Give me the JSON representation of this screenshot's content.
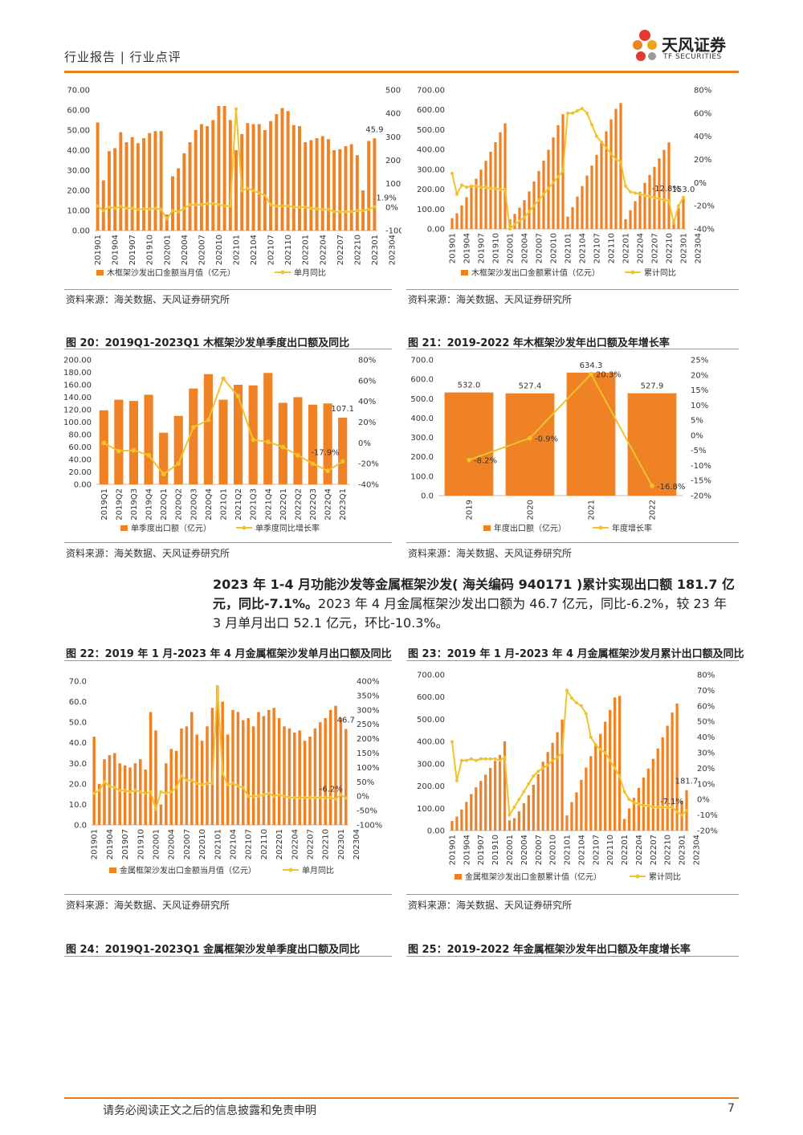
{
  "header": {
    "left": "行业报告 | 行业点评",
    "logo_cn": "天风证券",
    "logo_en": "TF SECURITIES"
  },
  "colors": {
    "bar": "#F08226",
    "line": "#F2C12E",
    "accent": "#E8801E"
  },
  "source_note": "资料来源：海关数据、天风证券研究所",
  "paragraph": {
    "bold": "2023 年 1-4 月功能沙发等金属框架沙发( 海关编码 940171 )累计实现出口额 181.7 亿元，同比-7.1%。",
    "normal": "2023 年 4 月金属框架沙发出口额为 46.7 亿元，同比-6.2%，较 23 年 3 月单月出口 52.1 亿元，环比-10.3%。"
  },
  "figures": {
    "fig20": "图 20：2019Q1-2023Q1 木框架沙发单季度出口额及同比",
    "fig21": "图 21：2019-2022 年木框架沙发年出口额及年增长率",
    "fig22": "图 22：2019 年 1 月-2023 年 4 月金属框架沙发单月出口额及同比",
    "fig23": "图 23：2019 年 1 月-2023 年 4 月金属框架沙发月累计出口额及同比",
    "fig24": "图 24：2019Q1-2023Q1 金属框架沙发单季度出口额及同比",
    "fig25": "图 25：2019-2022 年金属框架沙发年出口额及年度增长率"
  },
  "footer": {
    "disclaimer": "请务必阅读正文之后的信息披露和免责申明",
    "page": "7"
  },
  "chart_data": [
    {
      "type": "bar",
      "id": "wood-monthly",
      "xlabel_ticks": [
        "201901",
        "201904",
        "201907",
        "201910",
        "202001",
        "202004",
        "202007",
        "202010",
        "202101",
        "202104",
        "202107",
        "202110",
        "202201",
        "202204",
        "202207",
        "202210",
        "202301",
        "202304"
      ],
      "left_ticks": [
        "0.00",
        "10.00",
        "20.00",
        "30.00",
        "40.00",
        "50.00",
        "60.00",
        "70.00"
      ],
      "right_ticks": [
        "-100%",
        "0%",
        "100%",
        "200%",
        "300%",
        "400%",
        "500%"
      ],
      "ylim": [
        0,
        70
      ],
      "y2lim": [
        -100,
        500
      ],
      "series": [
        {
          "name": "木框架沙发出口金额当月值（亿元）",
          "kind": "bar",
          "values": [
            53.8,
            25,
            39.5,
            41,
            49,
            44,
            46.5,
            43.5,
            46,
            48.5,
            49.5,
            49.5,
            8,
            27,
            31,
            38.5,
            44,
            50,
            53,
            52,
            55,
            62,
            62,
            55,
            40,
            48,
            53.5,
            53,
            53,
            50,
            54.5,
            58,
            61,
            59.5,
            52.5,
            52,
            44,
            45,
            46,
            47,
            45.5,
            40,
            40.5,
            42,
            43,
            37.5,
            20,
            44.6,
            45.9
          ]
        },
        {
          "name": "单月同比",
          "kind": "line",
          "values": [
            5,
            -15,
            0,
            -5,
            2,
            -5,
            -5,
            -10,
            -8,
            -8,
            -5,
            -10,
            -50,
            -15,
            -20,
            -5,
            10,
            10,
            10,
            15,
            15,
            10,
            5,
            5,
            420,
            70,
            80,
            70,
            60,
            50,
            10,
            5,
            5,
            5,
            0,
            0,
            0,
            -5,
            -8,
            -10,
            -10,
            -20,
            -20,
            -20,
            -20,
            -15,
            -15,
            -10,
            1.9
          ]
        }
      ],
      "annotations": [
        "45.9",
        "1.9%"
      ]
    },
    {
      "type": "bar",
      "id": "wood-cumulative",
      "xlabel_ticks": [
        "201901",
        "201904",
        "201907",
        "201910",
        "202001",
        "202004",
        "202007",
        "202010",
        "202101",
        "202104",
        "202107",
        "202110",
        "202201",
        "202204",
        "202207",
        "202210",
        "202301",
        "202304"
      ],
      "left_ticks": [
        "0.00",
        "100.00",
        "200.00",
        "300.00",
        "400.00",
        "500.00",
        "600.00",
        "700.00"
      ],
      "right_ticks": [
        "-40%",
        "-20%",
        "0%",
        "20%",
        "40%",
        "60%",
        "80%"
      ],
      "ylim": [
        0,
        700
      ],
      "y2lim": [
        -40,
        80
      ],
      "series": [
        {
          "name": "木框架沙发出口金额累计值（亿元）",
          "kind": "bar",
          "values": [
            54,
            79,
            119,
            160,
            209,
            253,
            299,
            343,
            389,
            437,
            487,
            532,
            49,
            76,
            107,
            145,
            189,
            239,
            292,
            344,
            399,
            461,
            523,
            578,
            62,
            110,
            163,
            216,
            269,
            319,
            373,
            431,
            492,
            552,
            605,
            634,
            49,
            94,
            140,
            187,
            232,
            272,
            313,
            355,
            398,
            436,
            40,
            107,
            153
          ]
        },
        {
          "name": "累计同比",
          "kind": "line",
          "values": [
            8,
            -10,
            -2,
            -4,
            -3,
            -3,
            -4,
            -4,
            -5,
            -5,
            -6,
            -6,
            -40,
            -36,
            -33,
            -30,
            -25,
            -20,
            -15,
            -10,
            -5,
            0,
            5,
            10,
            60,
            60,
            62,
            64,
            60,
            50,
            40,
            35,
            30,
            25,
            20,
            18,
            -3,
            -8,
            -9,
            -10,
            -11,
            -12,
            -13,
            -14,
            -15,
            -16,
            -35,
            -20,
            -12.8
          ]
        }
      ],
      "annotations": [
        "153.0",
        "-12.8%"
      ]
    },
    {
      "type": "bar",
      "id": "wood-quarterly",
      "title": "图 20：2019Q1-2023Q1 木框架沙发单季度出口额及同比",
      "categories": [
        "2019Q1",
        "2019Q2",
        "2019Q3",
        "2019Q4",
        "2020Q1",
        "2020Q2",
        "2020Q3",
        "2020Q4",
        "2021Q1",
        "2021Q2",
        "2021Q3",
        "2021Q4",
        "2022Q1",
        "2022Q2",
        "2022Q3",
        "2022Q4",
        "2023Q1"
      ],
      "left_ticks": [
        "0.00",
        "20.00",
        "40.00",
        "60.00",
        "80.00",
        "100.00",
        "120.00",
        "140.00",
        "160.00",
        "180.00",
        "200.00"
      ],
      "right_ticks": [
        "-40%",
        "-20%",
        "0%",
        "20%",
        "40%",
        "60%",
        "80%"
      ],
      "ylim": [
        0,
        200
      ],
      "y2lim": [
        -40,
        80
      ],
      "series": [
        {
          "name": "单季度出口额（亿元）",
          "kind": "bar",
          "values": [
            119,
            136,
            134,
            144,
            83,
            110,
            154,
            177,
            136,
            160,
            159,
            179,
            131,
            140,
            128,
            130,
            107.1
          ]
        },
        {
          "name": "单季度同比增长率",
          "kind": "line",
          "values": [
            0,
            -8,
            -7,
            -12,
            -30,
            -20,
            15,
            22,
            62,
            45,
            3,
            1,
            -4,
            -12,
            -20,
            -27,
            -17.9
          ]
        }
      ],
      "annotations": [
        "107.1",
        "-17.9%"
      ]
    },
    {
      "type": "bar",
      "id": "wood-annual",
      "title": "图 21：2019-2022 年木框架沙发年出口额及年增长率",
      "categories": [
        "2019",
        "2020",
        "2021",
        "2022"
      ],
      "left_ticks": [
        "0.0",
        "100.0",
        "200.0",
        "300.0",
        "400.0",
        "500.0",
        "600.0",
        "700.0"
      ],
      "right_ticks": [
        "-20%",
        "-15%",
        "-10%",
        "-5%",
        "0%",
        "5%",
        "10%",
        "15%",
        "20%",
        "25%"
      ],
      "ylim": [
        0,
        700
      ],
      "y2lim": [
        -20,
        25
      ],
      "series": [
        {
          "name": "年度出口额（亿元）",
          "kind": "bar",
          "values": [
            532.0,
            527.4,
            634.3,
            527.9
          ]
        },
        {
          "name": "年度增长率",
          "kind": "line",
          "values": [
            -8.2,
            -0.9,
            20.3,
            -16.8
          ]
        }
      ],
      "bar_labels": [
        "532.0",
        "527.4",
        "634.3",
        "527.9"
      ],
      "line_labels": [
        "-8.2%",
        "-0.9%",
        "20.3%",
        "-16.8%"
      ]
    },
    {
      "type": "bar",
      "id": "metal-monthly",
      "title": "图 22：2019 年 1 月-2023 年 4 月金属框架沙发单月出口额及同比",
      "xlabel_ticks": [
        "201901",
        "201904",
        "201907",
        "201910",
        "202001",
        "202004",
        "202007",
        "202010",
        "202101",
        "202104",
        "202107",
        "202110",
        "202201",
        "202204",
        "202207",
        "202210",
        "202301",
        "202304"
      ],
      "left_ticks": [
        "0.0",
        "10.0",
        "20.0",
        "30.0",
        "40.0",
        "50.0",
        "60.0",
        "70.0"
      ],
      "right_ticks": [
        "-100%",
        "-50%",
        "0%",
        "50%",
        "100%",
        "150%",
        "200%",
        "250%",
        "300%",
        "350%",
        "400%"
      ],
      "ylim": [
        0,
        70
      ],
      "y2lim": [
        -100,
        400
      ],
      "series": [
        {
          "name": "金属框架沙发出口金额当月值（亿元）",
          "kind": "bar",
          "values": [
            43,
            20,
            32,
            34,
            35,
            30,
            29,
            28,
            30,
            32,
            27,
            55,
            46,
            10,
            30,
            37,
            36,
            47,
            48,
            55,
            44,
            41,
            48,
            57,
            68,
            60,
            44,
            56,
            55,
            51,
            52,
            48,
            55,
            53,
            56,
            57,
            52,
            48,
            47,
            45,
            46,
            41,
            43,
            47,
            50,
            52,
            56,
            58,
            52.1,
            46.7
          ]
        },
        {
          "name": "单月同比",
          "kind": "line",
          "values": [
            10,
            20,
            50,
            35,
            30,
            20,
            20,
            15,
            20,
            15,
            10,
            15,
            -45,
            15,
            10,
            15,
            30,
            70,
            55,
            55,
            45,
            40,
            45,
            45,
            380,
            80,
            40,
            45,
            35,
            30,
            0,
            0,
            0,
            5,
            10,
            0,
            5,
            0,
            -5,
            -5,
            -5,
            -5,
            -5,
            -5,
            -5,
            -5,
            -5,
            -10,
            5,
            -6.2
          ]
        }
      ],
      "annotations": [
        "46.7",
        "-6.2%"
      ]
    },
    {
      "type": "bar",
      "id": "metal-cumulative",
      "title": "图 23：2019 年 1 月-2023 年 4 月金属框架沙发月累计出口额及同比",
      "xlabel_ticks": [
        "201901",
        "201904",
        "201907",
        "201910",
        "202001",
        "202004",
        "202007",
        "202010",
        "202101",
        "202104",
        "202107",
        "202110",
        "202201",
        "202204",
        "202207",
        "202210",
        "202301",
        "202304"
      ],
      "left_ticks": [
        "0.00",
        "100.00",
        "200.00",
        "300.00",
        "400.00",
        "500.00",
        "600.00",
        "700.00"
      ],
      "right_ticks": [
        "-20%",
        "-10%",
        "0%",
        "10%",
        "20%",
        "30%",
        "40%",
        "50%",
        "60%",
        "70%",
        "80%"
      ],
      "ylim": [
        0,
        700
      ],
      "y2lim": [
        -20,
        80
      ],
      "series": [
        {
          "name": "金属框架沙发出口金额累计值（亿元）",
          "kind": "bar",
          "values": [
            43,
            63,
            95,
            129,
            164,
            194,
            223,
            251,
            281,
            313,
            340,
            401,
            46,
            56,
            86,
            123,
            159,
            206,
            254,
            309,
            353,
            394,
            442,
            499,
            68,
            128,
            172,
            228,
            283,
            334,
            386,
            434,
            489,
            542,
            598,
            605,
            52,
            100,
            147,
            192,
            238,
            279,
            322,
            369,
            419,
            471,
            530,
            571,
            135,
            181.7
          ]
        },
        {
          "name": "累计同比",
          "kind": "line",
          "values": [
            37,
            12,
            25,
            25,
            26,
            25,
            26,
            26,
            26,
            26,
            25,
            27,
            -10,
            -5,
            0,
            5,
            10,
            15,
            18,
            20,
            22,
            25,
            27,
            30,
            70,
            65,
            62,
            60,
            55,
            40,
            35,
            32,
            30,
            25,
            20,
            15,
            5,
            0,
            -2,
            -3,
            -4,
            -4,
            -5,
            -5,
            -5,
            -5,
            -5,
            -8,
            -10,
            -7.1
          ]
        }
      ],
      "annotations": [
        "181.7",
        "-7.1%"
      ]
    }
  ]
}
